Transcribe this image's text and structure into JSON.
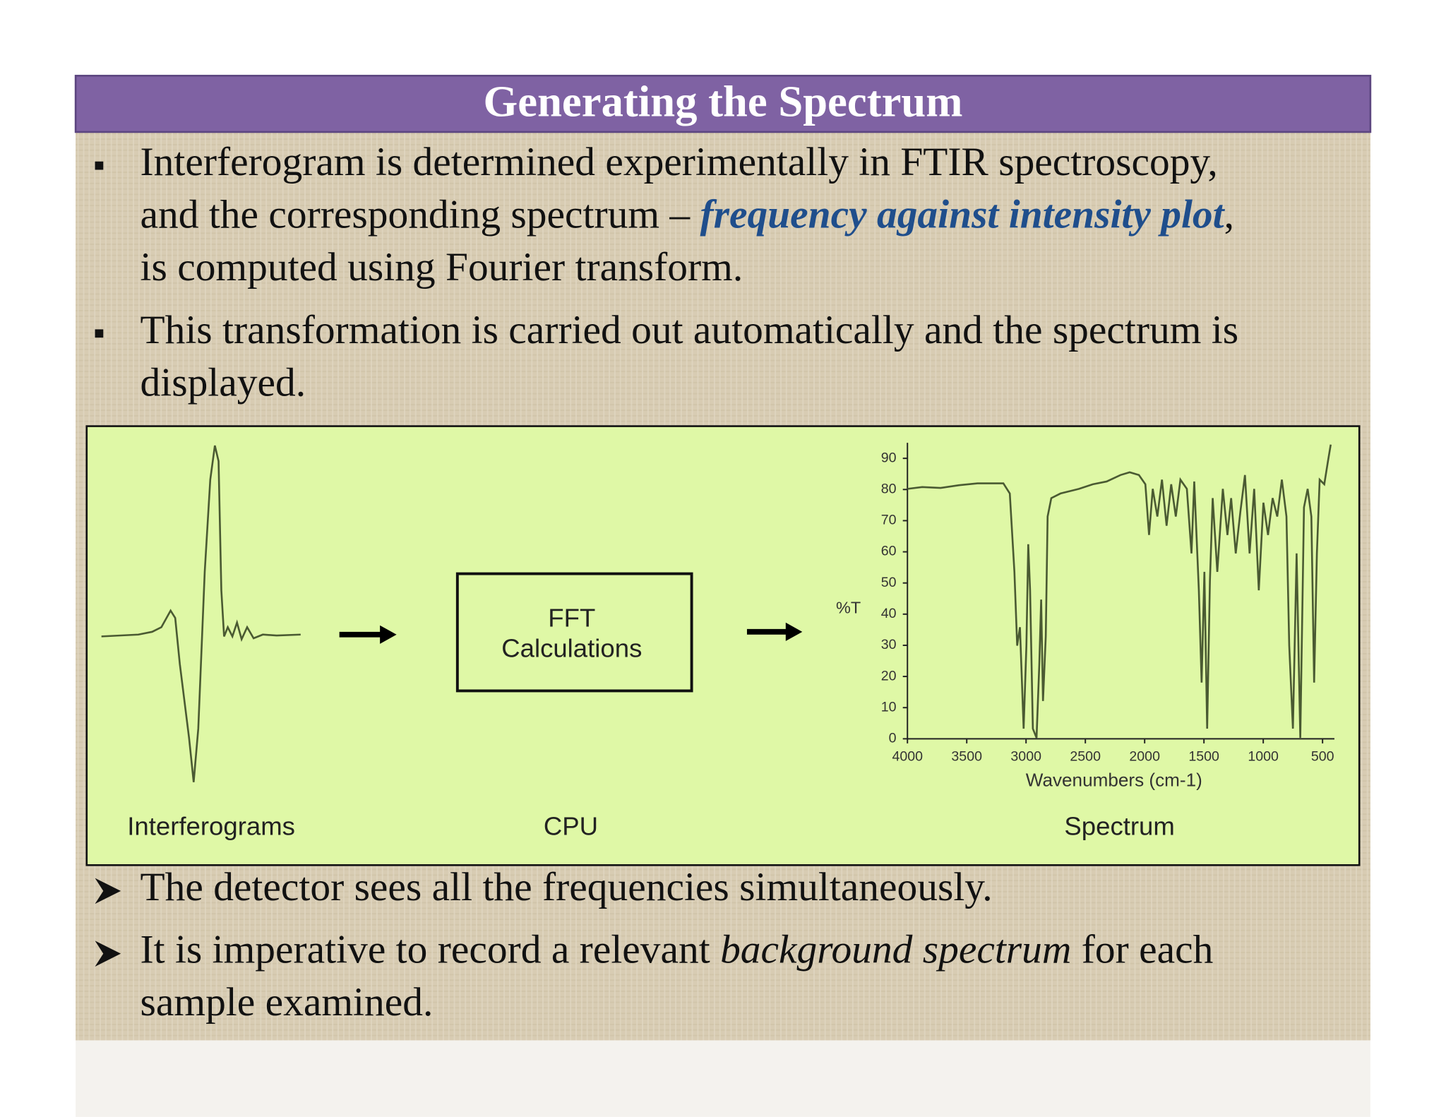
{
  "title": "Generating the Spectrum",
  "top_bullets": [
    {
      "lines": [
        [
          "Interferogram is determined experimentally in FTIR spectroscopy,"
        ],
        [
          "and the corresponding spectrum – ",
          "frequency against intensity plot",
          ","
        ],
        [
          "is computed using Fourier transform."
        ]
      ]
    },
    {
      "lines": [
        [
          "This transformation is carried out automatically and the spectrum is"
        ],
        [
          "displayed."
        ]
      ]
    }
  ],
  "figure": {
    "box_text": [
      "FFT",
      "Calculations"
    ],
    "captions": [
      "Interferograms",
      "CPU",
      "Spectrum"
    ],
    "spectrum_axes": {
      "ylabel": "%T",
      "xlabel": "Wavenumbers (cm-1)",
      "xlim": [
        4000,
        400
      ],
      "ylim": [
        0,
        95
      ],
      "xticks": [
        4000,
        3500,
        3000,
        2500,
        2000,
        1500,
        1000,
        500
      ],
      "yticks": [
        0,
        10,
        20,
        30,
        40,
        50,
        60,
        70,
        80,
        90
      ]
    }
  },
  "bottom_bullets": [
    {
      "lines": [
        [
          "The detector sees all the frequencies simultaneously."
        ]
      ]
    },
    {
      "lines": [
        [
          "It is imperative to record a relevant ",
          "background spectrum",
          " for each"
        ],
        [
          "sample examined."
        ]
      ]
    }
  ]
}
